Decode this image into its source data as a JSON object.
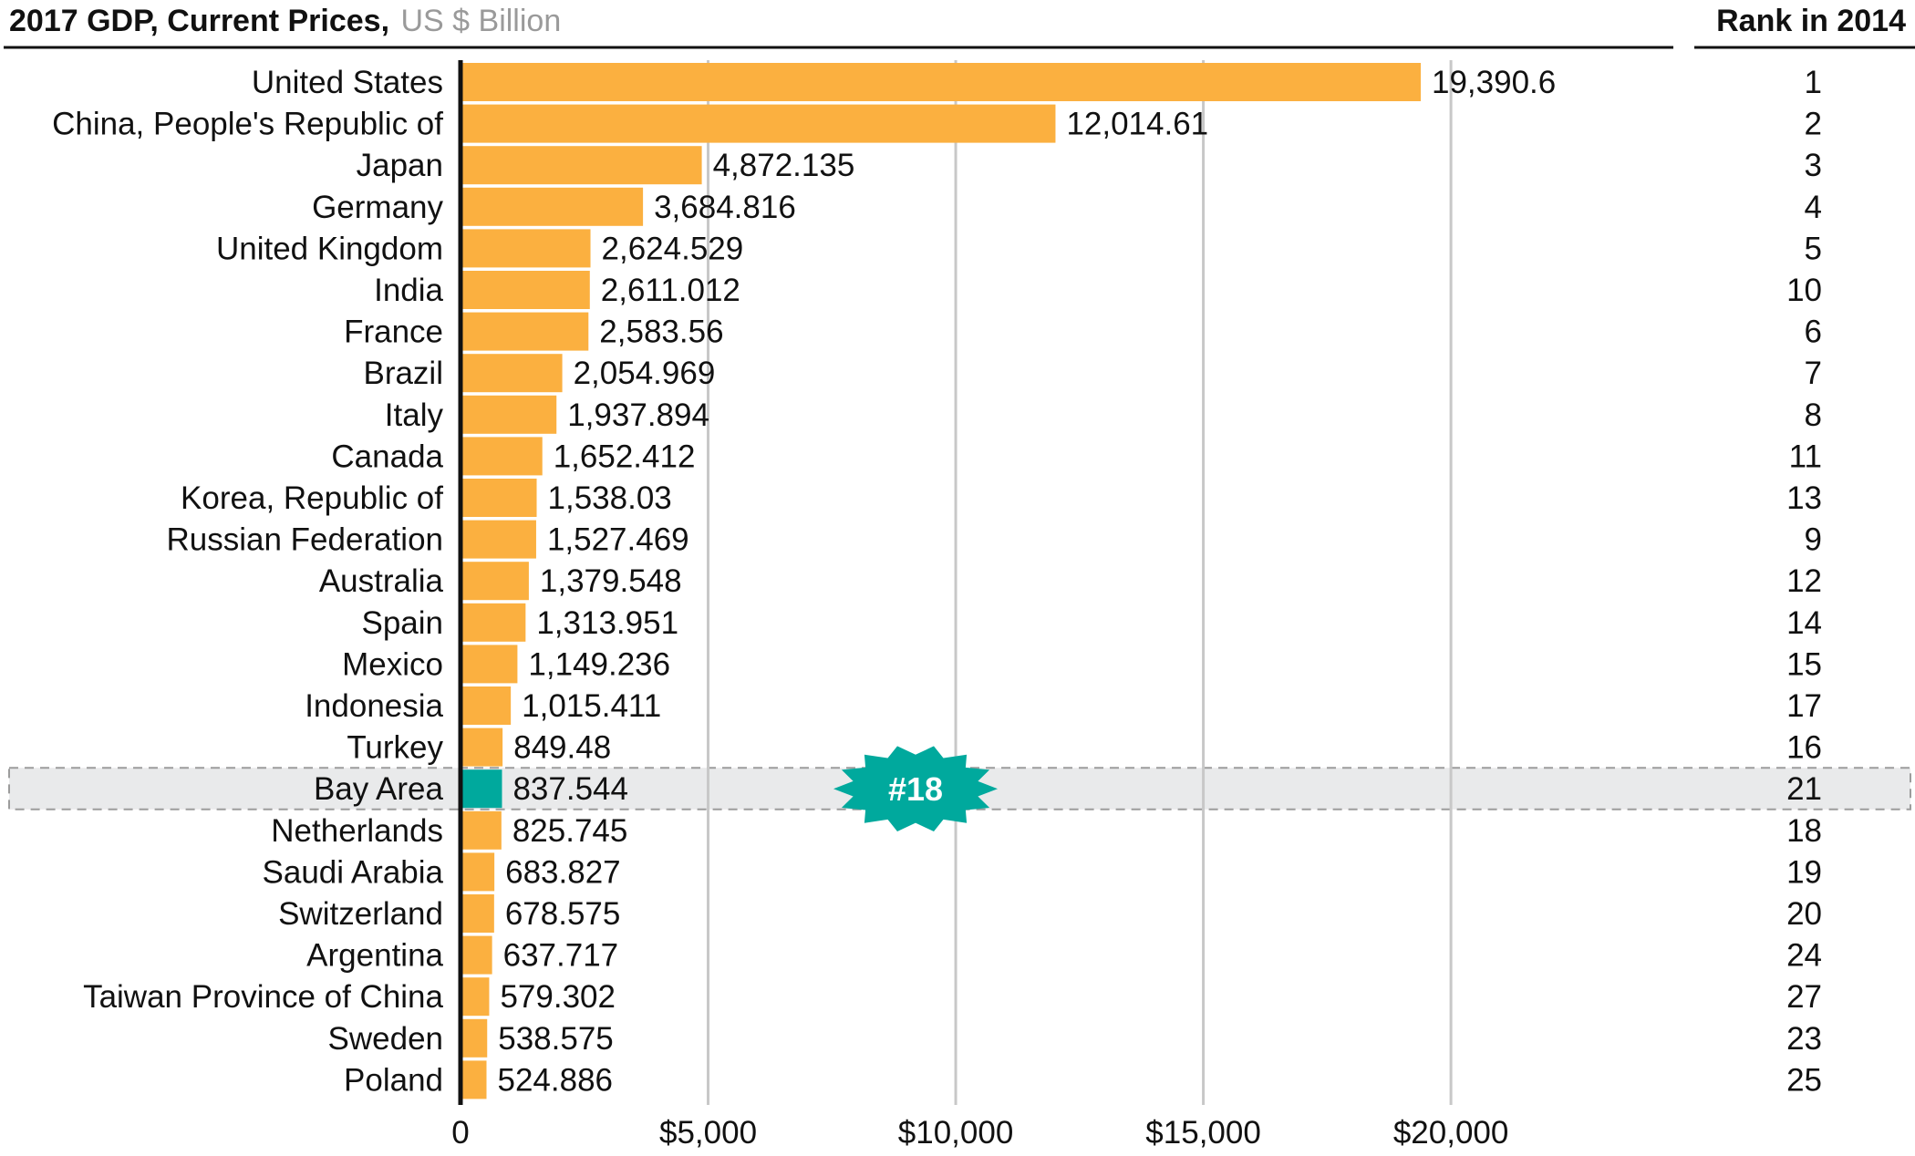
{
  "chart_data": {
    "type": "bar",
    "orientation": "horizontal",
    "title": "2017 GDP, Current Prices,",
    "title_unit": "US $ Billion",
    "rank_header": "Rank in 2014",
    "categories": [
      "United States",
      "China, People's Republic of",
      "Japan",
      "Germany",
      "United Kingdom",
      "India",
      "France",
      "Brazil",
      "Italy",
      "Canada",
      "Korea, Republic of",
      "Russian Federation",
      "Australia",
      "Spain",
      "Mexico",
      "Indonesia",
      "Turkey",
      "Bay Area",
      "Netherlands",
      "Saudi Arabia",
      "Switzerland",
      "Argentina",
      "Taiwan Province of China",
      "Sweden",
      "Poland"
    ],
    "values": [
      19390.6,
      12014.61,
      4872.135,
      3684.816,
      2624.529,
      2611.012,
      2583.56,
      2054.969,
      1937.894,
      1652.412,
      1538.03,
      1527.469,
      1379.548,
      1313.951,
      1149.236,
      1015.411,
      849.48,
      837.544,
      825.745,
      683.827,
      678.575,
      637.717,
      579.302,
      538.575,
      524.886
    ],
    "value_labels": [
      "19,390.6",
      "12,014.61",
      "4,872.135",
      "3,684.816",
      "2,624.529",
      "2,611.012",
      "2,583.56",
      "2,054.969",
      "1,937.894",
      "1,652.412",
      "1,538.03",
      "1,527.469",
      "1,379.548",
      "1,313.951",
      "1,149.236",
      "1,015.411",
      "849.48",
      "837.544",
      "825.745",
      "683.827",
      "678.575",
      "637.717",
      "579.302",
      "538.575",
      "524.886"
    ],
    "rank_2014": [
      "1",
      "2",
      "3",
      "4",
      "5",
      "10",
      "6",
      "7",
      "8",
      "11",
      "13",
      "9",
      "12",
      "14",
      "15",
      "17",
      "16",
      "21",
      "18",
      "19",
      "20",
      "24",
      "27",
      "23",
      "25"
    ],
    "xlim": [
      0,
      25000
    ],
    "xticks": [
      0,
      5000,
      10000,
      15000,
      20000
    ],
    "xtick_labels": [
      "0",
      "$5,000",
      "$10,000",
      "$15,000",
      "$20,000"
    ],
    "grid": true,
    "highlight": {
      "category": "Bay Area",
      "badge": "#18",
      "color": "#00a99d"
    },
    "bar_color": "#fbb040",
    "grid_color": "#c8c8c8",
    "highlight_band_color": "#e9eaeb"
  }
}
